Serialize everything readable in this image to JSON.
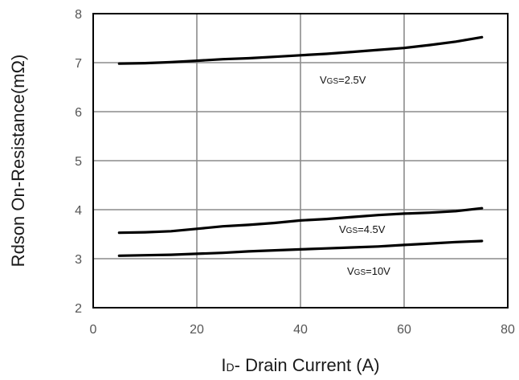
{
  "chart_data": {
    "type": "line",
    "xlabel": "ID- Drain Current (A)",
    "xlabel_main": "I",
    "xlabel_sub": "D",
    "xlabel_rest": "- Drain Current (A)",
    "ylabel": "Rdson On-Resistance(mΩ)",
    "xlim": [
      0,
      80
    ],
    "ylim": [
      2,
      8
    ],
    "xticks": [
      0,
      20,
      40,
      60,
      80
    ],
    "yticks": [
      2,
      3,
      4,
      5,
      6,
      7,
      8
    ],
    "grid": true,
    "legend": "none",
    "series": [
      {
        "label_main": "V",
        "label_sub": "GS",
        "label_rest": "=2.5V",
        "x": [
          5,
          10,
          15,
          20,
          25,
          30,
          35,
          40,
          45,
          50,
          55,
          60,
          65,
          70,
          75
        ],
        "values": [
          6.98,
          6.99,
          7.01,
          7.04,
          7.07,
          7.09,
          7.12,
          7.15,
          7.18,
          7.22,
          7.26,
          7.3,
          7.36,
          7.43,
          7.52
        ]
      },
      {
        "label_main": "V",
        "label_sub": "GS",
        "label_rest": "=4.5V",
        "x": [
          5,
          10,
          15,
          20,
          25,
          30,
          35,
          40,
          45,
          50,
          55,
          60,
          65,
          70,
          75
        ],
        "values": [
          3.53,
          3.54,
          3.56,
          3.61,
          3.66,
          3.69,
          3.73,
          3.78,
          3.81,
          3.85,
          3.89,
          3.92,
          3.94,
          3.97,
          4.03
        ]
      },
      {
        "label_main": "V",
        "label_sub": "GS",
        "label_rest": "=10V",
        "x": [
          5,
          10,
          15,
          20,
          25,
          30,
          35,
          40,
          45,
          50,
          55,
          60,
          65,
          70,
          75
        ],
        "values": [
          3.06,
          3.07,
          3.08,
          3.1,
          3.12,
          3.15,
          3.17,
          3.19,
          3.21,
          3.23,
          3.25,
          3.28,
          3.31,
          3.34,
          3.36
        ]
      }
    ]
  }
}
